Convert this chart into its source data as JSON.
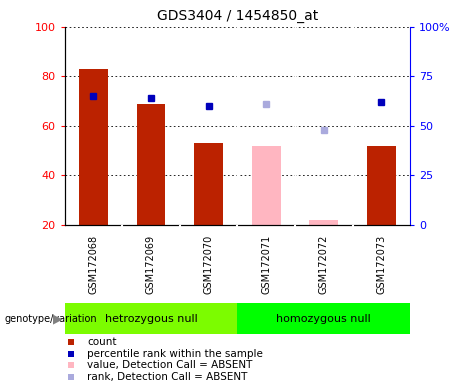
{
  "title": "GDS3404 / 1454850_at",
  "samples": [
    "GSM172068",
    "GSM172069",
    "GSM172070",
    "GSM172071",
    "GSM172072",
    "GSM172073"
  ],
  "count_values": [
    83,
    69,
    53,
    null,
    null,
    52
  ],
  "count_absent_values": [
    null,
    null,
    null,
    52,
    22,
    null
  ],
  "rank_values": [
    65,
    64,
    60,
    null,
    null,
    62
  ],
  "rank_absent_values": [
    null,
    null,
    null,
    61,
    48,
    null
  ],
  "ylim_left": [
    20,
    100
  ],
  "ylim_right": [
    0,
    100
  ],
  "yticks_left": [
    20,
    40,
    60,
    80,
    100
  ],
  "ytick_labels_left": [
    "20",
    "40",
    "60",
    "80",
    "100"
  ],
  "yticks_right": [
    0,
    25,
    50,
    75,
    100
  ],
  "ytick_labels_right": [
    "0",
    "25",
    "50",
    "75",
    "100%"
  ],
  "groups": [
    {
      "label": "hetrozygous null",
      "samples": [
        0,
        1,
        2
      ],
      "color": "#7CFC00"
    },
    {
      "label": "homozygous null",
      "samples": [
        3,
        4,
        5
      ],
      "color": "#00FF00"
    }
  ],
  "bar_width": 0.5,
  "colors": {
    "count_present": "#BB2200",
    "count_absent": "#FFB6C1",
    "rank_present": "#0000BB",
    "rank_absent": "#AAAADD",
    "label_area_bg": "#CCCCCC"
  },
  "legend_items": [
    {
      "label": "count",
      "color": "#BB2200"
    },
    {
      "label": "percentile rank within the sample",
      "color": "#0000BB"
    },
    {
      "label": "value, Detection Call = ABSENT",
      "color": "#FFB6C1"
    },
    {
      "label": "rank, Detection Call = ABSENT",
      "color": "#AAAADD"
    }
  ]
}
